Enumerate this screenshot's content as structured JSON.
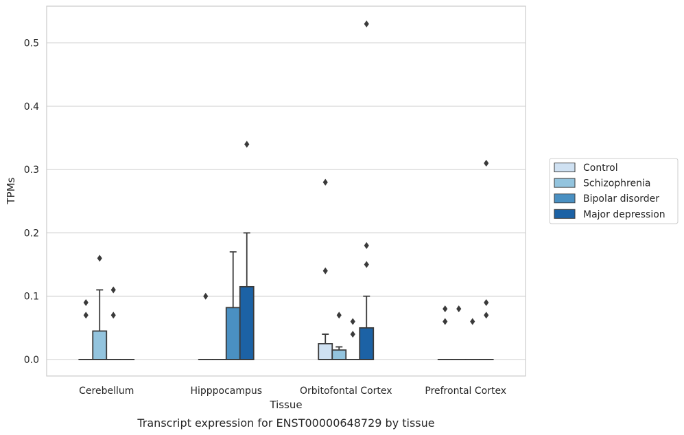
{
  "chart_data": {
    "type": "boxplot",
    "title": "",
    "caption": "Transcript expression for ENST00000648729 by tissue",
    "xlabel": "Tissue",
    "ylabel": "TPMs",
    "ylim": [
      -0.026,
      0.558
    ],
    "yticks": [
      0.0,
      0.1,
      0.2,
      0.3,
      0.4,
      0.5
    ],
    "ytick_labels": [
      "0.0",
      "0.1",
      "0.2",
      "0.3",
      "0.4",
      "0.5"
    ],
    "categories": [
      "Cerebellum",
      "Hipppocampus",
      "Orbitofontal Cortex",
      "Prefrontal Cortex"
    ],
    "grid": "horizontal",
    "legend_position": "right",
    "series": [
      {
        "name": "Control",
        "color": "#cfe1f2",
        "boxes": [
          {
            "q1": 0,
            "median": 0,
            "q3": 0,
            "whisker_low": 0,
            "whisker_high": 0,
            "outliers": [
              0.09,
              0.07
            ]
          },
          {
            "q1": 0,
            "median": 0,
            "q3": 0,
            "whisker_low": 0,
            "whisker_high": 0,
            "outliers": [
              0.1
            ]
          },
          {
            "q1": 0,
            "median": 0,
            "q3": 0.025,
            "whisker_low": 0,
            "whisker_high": 0.04,
            "outliers": [
              0.28,
              0.14
            ]
          },
          {
            "q1": 0,
            "median": 0,
            "q3": 0,
            "whisker_low": 0,
            "whisker_high": 0,
            "outliers": [
              0.08,
              0.06
            ]
          }
        ]
      },
      {
        "name": "Schizophrenia",
        "color": "#93c4de",
        "boxes": [
          {
            "q1": 0,
            "median": 0,
            "q3": 0.045,
            "whisker_low": 0,
            "whisker_high": 0.11,
            "outliers": [
              0.16
            ]
          },
          {
            "q1": 0,
            "median": 0,
            "q3": 0,
            "whisker_low": 0,
            "whisker_high": 0,
            "outliers": []
          },
          {
            "q1": 0,
            "median": 0,
            "q3": 0.015,
            "whisker_low": 0,
            "whisker_high": 0.02,
            "outliers": [
              0.07
            ]
          },
          {
            "q1": 0,
            "median": 0,
            "q3": 0,
            "whisker_low": 0,
            "whisker_high": 0,
            "outliers": [
              0.08
            ]
          }
        ]
      },
      {
        "name": "Bipolar disorder",
        "color": "#4a90c2",
        "boxes": [
          {
            "q1": 0,
            "median": 0,
            "q3": 0,
            "whisker_low": 0,
            "whisker_high": 0,
            "outliers": [
              0.11,
              0.07
            ]
          },
          {
            "q1": 0,
            "median": 0,
            "q3": 0.082,
            "whisker_low": 0,
            "whisker_high": 0.17,
            "outliers": []
          },
          {
            "q1": 0,
            "median": 0,
            "q3": 0,
            "whisker_low": 0,
            "whisker_high": 0,
            "outliers": [
              0.06,
              0.04
            ]
          },
          {
            "q1": 0,
            "median": 0,
            "q3": 0,
            "whisker_low": 0,
            "whisker_high": 0,
            "outliers": [
              0.06
            ]
          }
        ]
      },
      {
        "name": "Major depression",
        "color": "#1c62a5",
        "boxes": [
          {
            "q1": 0,
            "median": 0,
            "q3": 0,
            "whisker_low": 0,
            "whisker_high": 0,
            "outliers": []
          },
          {
            "q1": 0,
            "median": 0,
            "q3": 0.115,
            "whisker_low": 0,
            "whisker_high": 0.2,
            "outliers": [
              0.34
            ]
          },
          {
            "q1": 0,
            "median": 0,
            "q3": 0.05,
            "whisker_low": 0,
            "whisker_high": 0.1,
            "outliers": [
              0.53,
              0.18,
              0.15
            ]
          },
          {
            "q1": 0,
            "median": 0,
            "q3": 0,
            "whisker_low": 0,
            "whisker_high": 0,
            "outliers": [
              0.31,
              0.09,
              0.07
            ]
          }
        ]
      }
    ],
    "colors": {
      "grid": "#cccccc",
      "frame": "#cccccc",
      "edge": "#3a3a3a",
      "text": "#262626"
    }
  }
}
